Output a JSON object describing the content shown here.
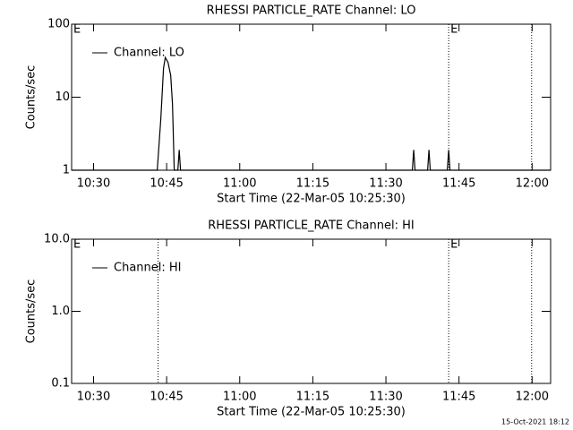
{
  "chart_data": [
    {
      "type": "line",
      "title": "RHESSI PARTICLE_RATE Channel: LO",
      "xlabel": "Start Time (22-Mar-05 10:25:30)",
      "ylabel": "Counts/sec",
      "log_y": true,
      "xlim": [
        625.5,
        723.8
      ],
      "ylim": [
        1,
        100
      ],
      "xticks": [
        {
          "value": 630,
          "label": "10:30"
        },
        {
          "value": 645,
          "label": "10:45"
        },
        {
          "value": 660,
          "label": "11:00"
        },
        {
          "value": 675,
          "label": "11:15"
        },
        {
          "value": 690,
          "label": "11:30"
        },
        {
          "value": 705,
          "label": "11:45"
        },
        {
          "value": 720,
          "label": "12:00"
        }
      ],
      "yticks": [
        1,
        10,
        100
      ],
      "series": [
        {
          "name": "Channel: LO",
          "color": "#000000",
          "x": [
            625.5,
            643.07,
            643.8,
            644.36,
            644.72,
            645.28,
            645.83,
            646.2,
            646.56,
            647.3,
            647.58,
            647.85,
            695.43,
            695.7,
            695.98,
            698.56,
            698.83,
            699.1,
            702.6,
            702.88,
            703.15,
            723.8
          ],
          "values": [
            1,
            1,
            5,
            25,
            35,
            30,
            20,
            8,
            1,
            1,
            1.9,
            1,
            1,
            1.9,
            1,
            1,
            1.9,
            1,
            1,
            1.9,
            1,
            1
          ]
        }
      ],
      "vlines": [
        702.88,
        719.9
      ],
      "annotations": [
        {
          "text": "E",
          "x": 625.5
        },
        {
          "text": "E",
          "x": 702.88
        }
      ]
    },
    {
      "type": "line",
      "title": "RHESSI PARTICLE_RATE Channel: HI",
      "xlabel": "Start Time (22-Mar-05 10:25:30)",
      "ylabel": "Counts/sec",
      "log_y": true,
      "xlim": [
        625.5,
        723.8
      ],
      "ylim": [
        0.1,
        10
      ],
      "xticks": [
        {
          "value": 630,
          "label": "10:30"
        },
        {
          "value": 645,
          "label": "10:45"
        },
        {
          "value": 660,
          "label": "11:00"
        },
        {
          "value": 675,
          "label": "11:15"
        },
        {
          "value": 690,
          "label": "11:30"
        },
        {
          "value": 705,
          "label": "11:45"
        },
        {
          "value": 720,
          "label": "12:00"
        }
      ],
      "yticks": [
        0.1,
        {
          "value": 1,
          "label": "1.0"
        },
        {
          "value": 10,
          "label": "10.0"
        }
      ],
      "series": [
        {
          "name": "Channel: HI",
          "color": "#000000",
          "x": [],
          "values": []
        }
      ],
      "vlines": [
        643.25,
        702.88,
        719.9
      ],
      "annotations": [
        {
          "text": "E",
          "x": 625.5
        },
        {
          "text": "E",
          "x": 702.88
        }
      ]
    }
  ],
  "footer": "15-Oct-2021 18:12"
}
